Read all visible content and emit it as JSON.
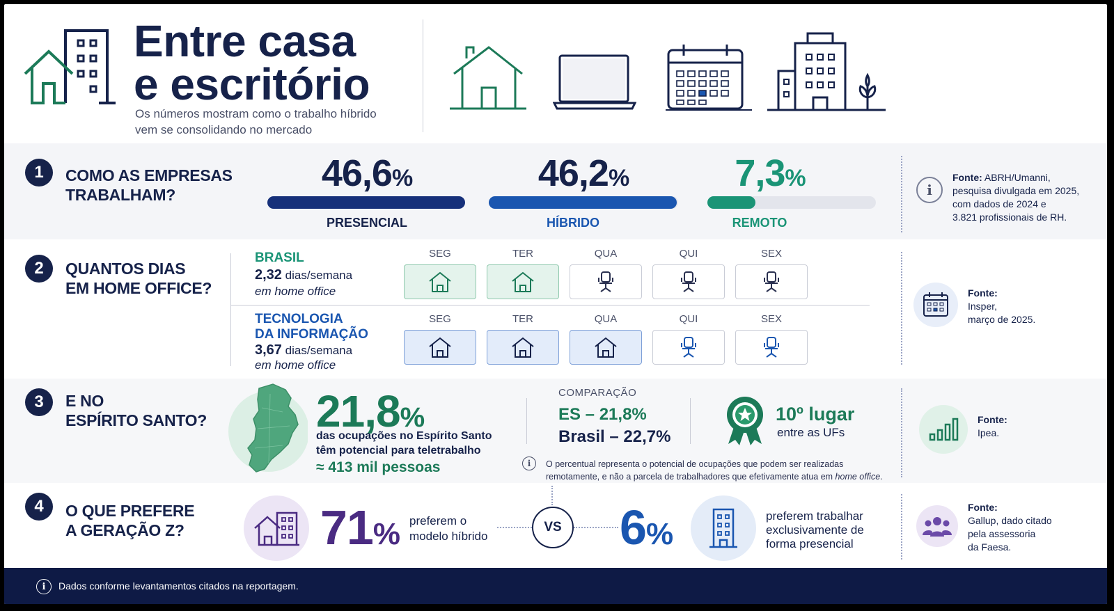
{
  "header": {
    "title_line1": "Entre casa",
    "title_line2": "e escritório",
    "subtitle_line1": "Os números mostram como o trabalho híbrido",
    "subtitle_line2": "vem se consolidando no mercado",
    "icons": [
      "house-building-icon",
      "house-icon",
      "laptop-icon",
      "calendar-icon",
      "office-building-icon"
    ]
  },
  "s1": {
    "num": "1",
    "q1": "COMO AS EMPRESAS",
    "q2": "TRABALHAM?",
    "stats": [
      {
        "value": "46,6",
        "unit": "%",
        "label": "PRESENCIAL",
        "pct": 46.6,
        "color": "#16307a"
      },
      {
        "value": "46,2",
        "unit": "%",
        "label": "HÍBRIDO",
        "pct": 46.2,
        "color": "#1a56b0"
      },
      {
        "value": "7,3",
        "unit": "%",
        "label": "REMOTO",
        "pct": 7.3,
        "color": "#1a9476"
      }
    ],
    "source_bold": "Fonte:",
    "source_1": "ABRH/Umanni,",
    "source_2": "pesquisa divulgada em 2025,",
    "source_3": "com dados de 2024 e",
    "source_4": "3.821 profissionais de RH."
  },
  "s2": {
    "num": "2",
    "q1": "QUANTOS DIAS",
    "q2": "EM HOME OFFICE?",
    "days": [
      "SEG",
      "TER",
      "QUA",
      "QUI",
      "SEX"
    ],
    "brasil": {
      "name": "BRASIL",
      "value": "2,32",
      "unit": "dias/semana",
      "sub": "em home office",
      "home_days": 2
    },
    "ti": {
      "name1": "TECNOLOGIA",
      "name2": "DA INFORMAÇÃO",
      "value": "3,67",
      "unit": "dias/semana",
      "sub": "em home office",
      "home_days": 3
    },
    "source_bold": "Fonte:",
    "source_1": "Insper,",
    "source_2": "março de 2025."
  },
  "s3": {
    "num": "3",
    "q1": "E NO",
    "q2": "ESPÍRITO SANTO?",
    "big": "21,8",
    "unit": "%",
    "desc1": "das ocupações no Espírito Santo",
    "desc2": "têm potencial para teletrabalho",
    "people": "≈ 413 mil pessoas",
    "comp_title": "COMPARAÇÃO",
    "comp_es": "ES – 21,8%",
    "comp_br": "Brasil – 22,7%",
    "rank": "10º lugar",
    "rank_sub": "entre as UFs",
    "note1": "O percentual representa o potencial de ocupações que podem ser realizadas",
    "note2a": "remotamente, e não a parcela de trabalhadores que efetivamente atua em ",
    "note2b": "home office",
    ".": ".",
    "source_bold": "Fonte:",
    "source_1": "Ipea."
  },
  "s4": {
    "num": "4",
    "q1": "O QUE PREFERE",
    "q2": "A GERAÇÃO Z?",
    "big1": "71",
    "unit1": "%",
    "desc1a": "preferem o",
    "desc1b": "modelo híbrido",
    "vs": "VS",
    "big2": "6",
    "unit2": "%",
    "desc2a": "preferem trabalhar",
    "desc2b": "exclusivamente de",
    "desc2c": "forma presencial",
    "source_bold": "Fonte:",
    "source_1": "Gallup, dado citado",
    "source_2": "pela assessoria",
    "source_3": "da Faesa."
  },
  "footer": {
    "text": "Dados conforme levantamentos citados na reportagem."
  }
}
